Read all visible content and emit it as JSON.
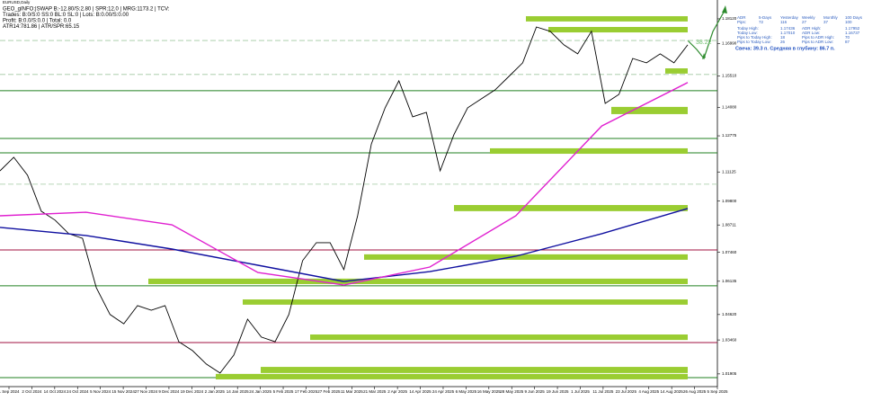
{
  "chart_data": {
    "type": "line",
    "title": "EURUSD,Daily",
    "info_lines": [
      "GEO_gINFO:|SWAP B:-12.80/S:2.80 | SPR:12.0 | MRG:1173.2 | TCV:",
      "Trades: B:0/S:0 SS:0 BL:0 SL:0 | Lots: B:0.00/S:0.00",
      "Profit: B:0.0/S:0.0 | Total: 0.0",
      "ATR14:781.86 | ATR/SPR:65.15"
    ],
    "date_labels": [
      "1 Sep 2024",
      "2 Oct 2024",
      "14 Oct 2024",
      "24 Oct 2024",
      "5 Nov 2024",
      "15 Nov 2024",
      "27 Nov 2024",
      "9 Dec 2024",
      "19 Dec 2024",
      "2 Jan 2025",
      "14 Jan 2025",
      "24 Jan 2025",
      "5 Feb 2025",
      "17 Feb 2025",
      "27 Feb 2025",
      "11 Mar 2025",
      "21 Mar 2025",
      "2 Apr 2025",
      "14 Apr 2025",
      "24 Apr 2025",
      "6 May 2025",
      "16 May 2025",
      "28 May 2025",
      "9 Jun 2025",
      "19 Jun 2025",
      "1 Jul 2025",
      "11 Jul 2025",
      "23 Jul 2025",
      "4 Aug 2025",
      "14 Aug 2025",
      "26 Aug 2025",
      "5 Sep 2025"
    ],
    "series": [
      {
        "name": "Price",
        "color": "#000000",
        "values": [
          1.1118,
          1.118,
          1.1098,
          1.0934,
          1.0893,
          1.0831,
          1.081,
          1.0585,
          1.0462,
          1.042,
          1.0503,
          1.0482,
          1.0503,
          1.0338,
          1.0297,
          1.0236,
          1.0195,
          1.0277,
          1.0441,
          1.0359,
          1.0338,
          1.0462,
          1.0708,
          1.079,
          1.079,
          1.0667,
          1.0913,
          1.1241,
          1.1406,
          1.1529,
          1.1365,
          1.1385,
          1.1118,
          1.1283,
          1.1406,
          1.1447,
          1.1488,
          1.1549,
          1.1611,
          1.1775,
          1.1755,
          1.1693,
          1.1652,
          1.1755,
          1.1426,
          1.1467,
          1.1631,
          1.1611,
          1.1652,
          1.1611,
          1.1693
        ]
      },
      {
        "name": "MA slow",
        "color": "#1010a0",
        "values": [
          1.086,
          1.0823,
          1.0761,
          1.0687,
          1.0613,
          1.0658,
          1.0728,
          1.0831,
          1.0946
        ]
      },
      {
        "name": "MA fast",
        "color": "#e020d0",
        "values": [
          1.0913,
          1.0929,
          1.0872,
          1.0654,
          1.0597,
          1.0679,
          1.0913,
          1.1323,
          1.1521
        ]
      }
    ],
    "levels": [
      {
        "value": 1.1484,
        "color": "#208020",
        "dash": false
      },
      {
        "value": 1.1266,
        "color": "#208020",
        "dash": false
      },
      {
        "value": 1.12,
        "color": "#208020",
        "dash": false
      },
      {
        "value": 1.0593,
        "color": "#208020",
        "dash": false
      },
      {
        "value": 1.0174,
        "color": "#208020",
        "dash": false
      },
      {
        "value": 1.0757,
        "color": "#a01040",
        "dash": false
      },
      {
        "value": 1.0334,
        "color": "#a01040",
        "dash": false
      },
      {
        "value": 1.1713,
        "color": "#a0c8a0",
        "dash": true
      },
      {
        "value": 1.1558,
        "color": "#a0c8a0",
        "dash": true
      },
      {
        "value": 1.1057,
        "color": "#a0c8a0",
        "dash": true
      }
    ],
    "zones": [
      [
        1.1824,
        1.18
      ],
      [
        1.1775,
        1.175
      ],
      [
        1.1586,
        1.1562
      ],
      [
        1.141,
        1.1377
      ],
      [
        1.1221,
        1.1196
      ],
      [
        1.0962,
        1.0934
      ],
      [
        1.0737,
        1.0712
      ],
      [
        1.0626,
        1.0601
      ],
      [
        1.0531,
        1.0507
      ],
      [
        1.0371,
        1.0346
      ],
      [
        1.0223,
        1.0195
      ],
      [
        1.0191,
        1.0166
      ]
    ],
    "zone_color": "#9acd32",
    "ylim": [
      1.0133,
      1.1898
    ],
    "yticks": [
      {
        "value": 1.1812,
        "label": "1.18120"
      },
      {
        "value": 1.1699,
        "label": "1.16990"
      },
      {
        "value": 1.1551,
        "label": "1.15510"
      },
      {
        "value": 1.1408,
        "label": "1.14080"
      },
      {
        "value": 1.1278,
        "label": "1.12775"
      },
      {
        "value": 1.1113,
        "label": "1.11125"
      },
      {
        "value": 1.098,
        "label": "1.09800"
      },
      {
        "value": 1.0871,
        "label": "1.08711"
      },
      {
        "value": 1.0746,
        "label": "1.07460"
      },
      {
        "value": 1.0614,
        "label": "1.06135"
      },
      {
        "value": 1.0462,
        "label": "1.04620"
      },
      {
        "value": 1.0346,
        "label": "1.03460"
      },
      {
        "value": 1.0191,
        "label": "1.01905"
      }
    ],
    "annotation": "38.22",
    "panel": {
      "rows": [
        [
          "ADR",
          "5-Days",
          "Yesterday",
          "Weekly",
          "Monthly",
          "100 Days"
        ],
        [
          "Pips:",
          "72",
          "116",
          "27",
          "37",
          "100"
        ]
      ],
      "stats": [
        [
          "Today High:",
          "1.17436",
          "ADR High:",
          "1.17952"
        ],
        [
          "Today Low:",
          "1.17010",
          "ADR Low:",
          "1.16737"
        ],
        [
          "Pips to Today High:",
          "18",
          "Pips to ADR High:",
          "70"
        ],
        [
          "Pips to Today Low:",
          "26",
          "Pips to ADR Low:",
          "87"
        ]
      ],
      "note": "Свеча: 39.3 п. Средняя в глубину: 86.7 п."
    }
  }
}
